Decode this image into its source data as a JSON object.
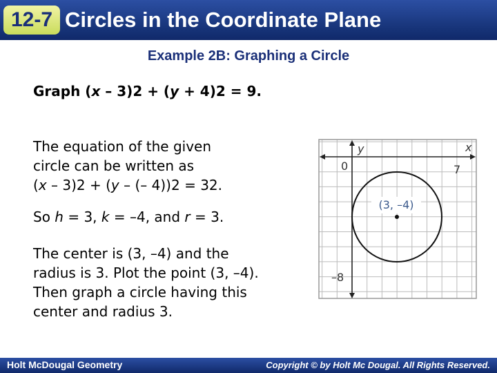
{
  "header": {
    "lesson_number": "12-7",
    "title": "Circles in the Coordinate Plane"
  },
  "example_title": "Example 2B: Graphing a Circle",
  "prompt": [
    "Graph (",
    "x",
    " – 3)",
    "2",
    " + (",
    "y",
    " + 4)",
    "2",
    " = 9."
  ],
  "paragraph_1": {
    "line_1": "The equation of the given",
    "line_2": "circle can be written as",
    "line_3": [
      "(",
      "x",
      " – 3)",
      "2",
      " + (",
      "y",
      " – (– 4))",
      "2",
      " = 3",
      "2",
      "."
    ]
  },
  "paragraph_2": [
    "So ",
    "h",
    " = 3, ",
    "k",
    " = –4, and ",
    "r",
    " = 3."
  ],
  "paragraph_3": [
    "The center is (3, –4) and the",
    "radius is 3. Plot the point (3, –4).",
    "Then graph a circle having this",
    "center and radius 3."
  ],
  "graph": {
    "y_axis_label": "y",
    "x_axis_label": "x",
    "origin_label": "0",
    "x_tick_label": "7",
    "y_tick_label": "–8",
    "center_label": "(3, –4)"
  },
  "footer": {
    "left": "Holt McDougal Geometry",
    "right": "Copyright © by Holt Mc Dougal. All Rights Reserved."
  }
}
